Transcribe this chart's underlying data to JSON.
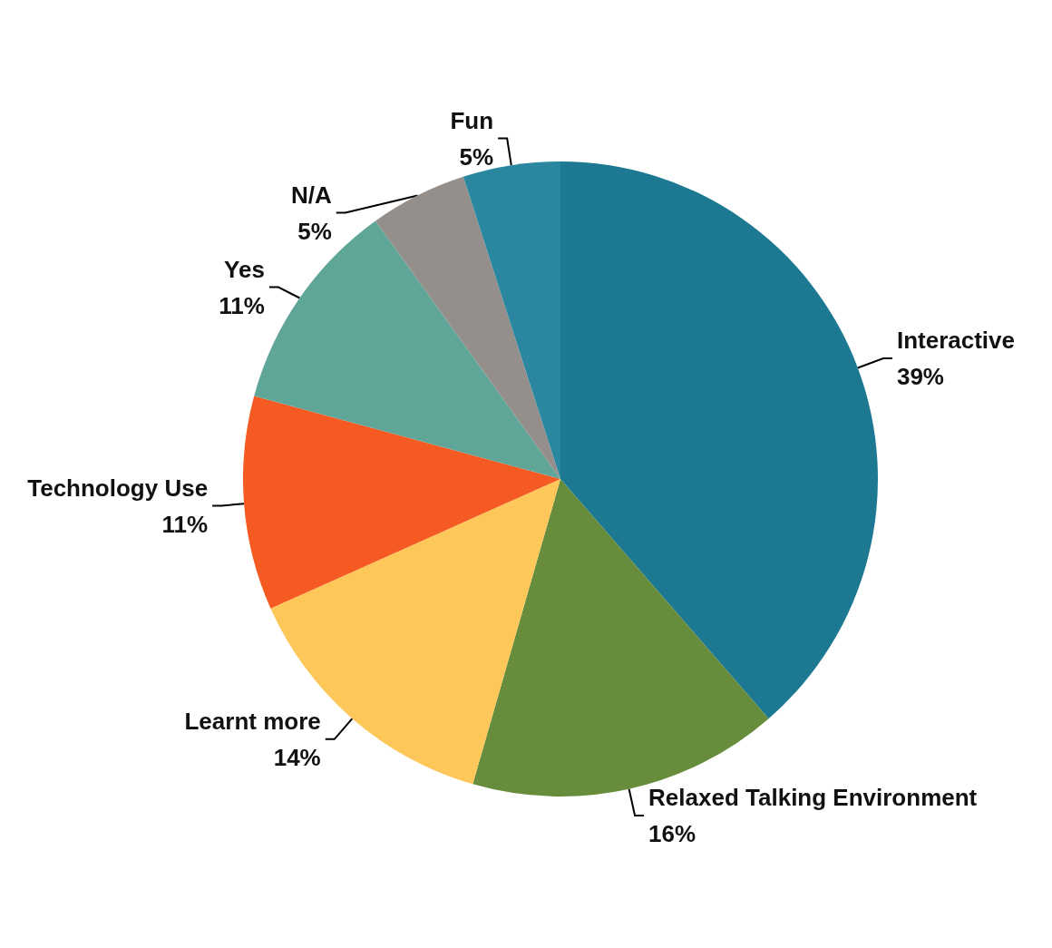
{
  "chart_data": {
    "type": "pie",
    "categories": [
      "Interactive",
      "Relaxed Talking Environment",
      "Learnt more",
      "Technology Use",
      "Yes",
      "N/A",
      "Fun"
    ],
    "values": [
      39,
      16,
      14,
      11,
      11,
      5,
      5
    ],
    "value_labels": [
      "39%",
      "16%",
      "14%",
      "11%",
      "11%",
      "5%",
      "5%"
    ],
    "colors": [
      "#1d7892",
      "#668c3c",
      "#fdc75a",
      "#f55a22",
      "#5fa698",
      "#958f8b",
      "#2b87a0"
    ],
    "legend": false
  }
}
